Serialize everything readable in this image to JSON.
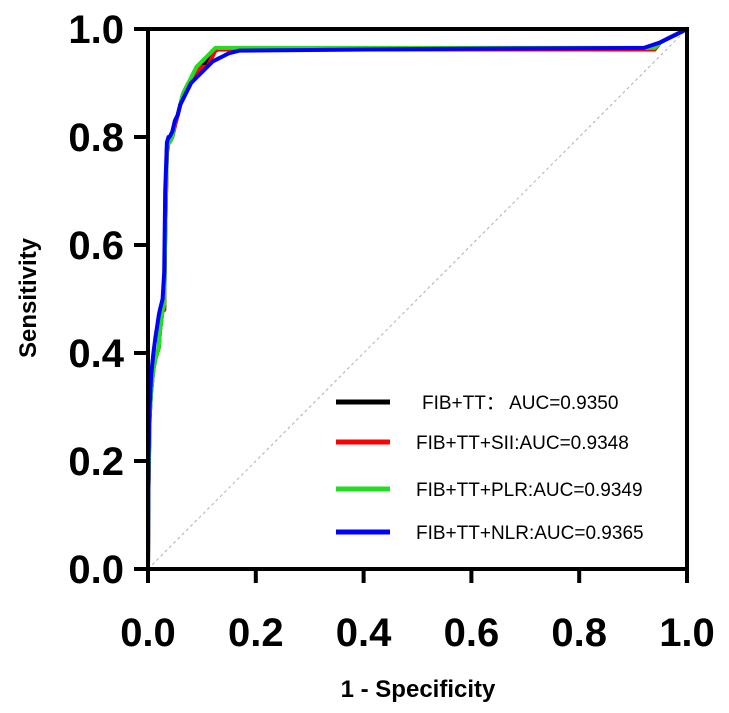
{
  "chart_data": {
    "type": "line",
    "xlabel": "1 - Specificity",
    "ylabel": "Sensitivity",
    "xlim": [
      0,
      1
    ],
    "ylim": [
      0,
      1
    ],
    "xticks": [
      "0.0",
      "0.2",
      "0.4",
      "0.6",
      "0.8",
      "1.0"
    ],
    "yticks": [
      "0.0",
      "0.2",
      "0.4",
      "0.6",
      "0.8",
      "1.0"
    ],
    "grid": false,
    "legend_position": "bottom-right",
    "reference_line": {
      "x": [
        0,
        1
      ],
      "y": [
        0,
        1
      ],
      "style": "dashed",
      "color": "#b0b0b0"
    },
    "series": [
      {
        "name": "FIB+TT： AUC=0.9350",
        "color": "#000000",
        "x": [
          0,
          0.001,
          0.003,
          0.006,
          0.01,
          0.014,
          0.017,
          0.02,
          0.022,
          0.027,
          0.03,
          0.032,
          0.035,
          0.038,
          0.04,
          0.045,
          0.05,
          0.055,
          0.06,
          0.065,
          0.07,
          0.075,
          0.08,
          0.085,
          0.09,
          0.1,
          0.11,
          0.12,
          0.125,
          0.13,
          0.5,
          0.94,
          0.95,
          0.97,
          0.98,
          1.0
        ],
        "y": [
          0,
          0.15,
          0.28,
          0.33,
          0.37,
          0.39,
          0.4,
          0.41,
          0.44,
          0.48,
          0.48,
          0.62,
          0.78,
          0.79,
          0.79,
          0.8,
          0.83,
          0.84,
          0.86,
          0.88,
          0.89,
          0.9,
          0.9,
          0.91,
          0.92,
          0.93,
          0.94,
          0.96,
          0.96,
          0.963,
          0.963,
          0.963,
          0.975,
          0.985,
          0.99,
          1.0
        ]
      },
      {
        "name": "FIB+TT+SII:AUC=0.9348",
        "color": "#ff0000",
        "x": [
          0,
          0.001,
          0.003,
          0.006,
          0.01,
          0.014,
          0.017,
          0.02,
          0.022,
          0.027,
          0.03,
          0.032,
          0.035,
          0.038,
          0.04,
          0.045,
          0.05,
          0.055,
          0.06,
          0.065,
          0.07,
          0.075,
          0.08,
          0.085,
          0.09,
          0.1,
          0.11,
          0.12,
          0.125,
          0.13,
          0.5,
          0.94,
          0.95,
          0.97,
          0.98,
          1.0
        ],
        "y": [
          0,
          0.15,
          0.28,
          0.33,
          0.37,
          0.39,
          0.4,
          0.41,
          0.44,
          0.48,
          0.48,
          0.62,
          0.77,
          0.79,
          0.79,
          0.8,
          0.82,
          0.84,
          0.86,
          0.87,
          0.89,
          0.89,
          0.9,
          0.91,
          0.92,
          0.93,
          0.93,
          0.95,
          0.96,
          0.962,
          0.962,
          0.962,
          0.975,
          0.985,
          0.99,
          1.0
        ]
      },
      {
        "name": "FIB+TT+PLR:AUC=0.9349",
        "color": "#22dd22",
        "x": [
          0,
          0.001,
          0.003,
          0.006,
          0.01,
          0.014,
          0.017,
          0.02,
          0.022,
          0.027,
          0.03,
          0.032,
          0.035,
          0.038,
          0.04,
          0.045,
          0.05,
          0.055,
          0.06,
          0.065,
          0.07,
          0.075,
          0.08,
          0.085,
          0.09,
          0.1,
          0.11,
          0.12,
          0.125,
          0.13,
          0.5,
          0.94,
          0.95,
          0.97,
          0.98,
          1.0
        ],
        "y": [
          0,
          0.15,
          0.28,
          0.33,
          0.37,
          0.39,
          0.4,
          0.41,
          0.44,
          0.48,
          0.49,
          0.62,
          0.78,
          0.79,
          0.79,
          0.8,
          0.83,
          0.84,
          0.86,
          0.88,
          0.89,
          0.9,
          0.91,
          0.92,
          0.93,
          0.94,
          0.95,
          0.96,
          0.965,
          0.965,
          0.965,
          0.965,
          0.975,
          0.985,
          0.99,
          1.0
        ]
      },
      {
        "name": "FIB+TT+NLR:AUC=0.9365",
        "color": "#0000ff",
        "x": [
          0,
          0.001,
          0.003,
          0.006,
          0.01,
          0.014,
          0.017,
          0.02,
          0.022,
          0.027,
          0.03,
          0.032,
          0.035,
          0.038,
          0.04,
          0.045,
          0.05,
          0.055,
          0.06,
          0.065,
          0.07,
          0.075,
          0.08,
          0.09,
          0.1,
          0.11,
          0.12,
          0.13,
          0.14,
          0.15,
          0.17,
          0.5,
          0.92,
          0.95,
          0.97,
          0.98,
          1.0
        ],
        "y": [
          0,
          0.2,
          0.3,
          0.36,
          0.4,
          0.43,
          0.45,
          0.47,
          0.48,
          0.5,
          0.55,
          0.7,
          0.79,
          0.8,
          0.8,
          0.81,
          0.83,
          0.84,
          0.86,
          0.87,
          0.88,
          0.89,
          0.9,
          0.91,
          0.92,
          0.93,
          0.94,
          0.945,
          0.95,
          0.955,
          0.96,
          0.963,
          0.965,
          0.975,
          0.985,
          0.99,
          1.0
        ]
      }
    ]
  }
}
